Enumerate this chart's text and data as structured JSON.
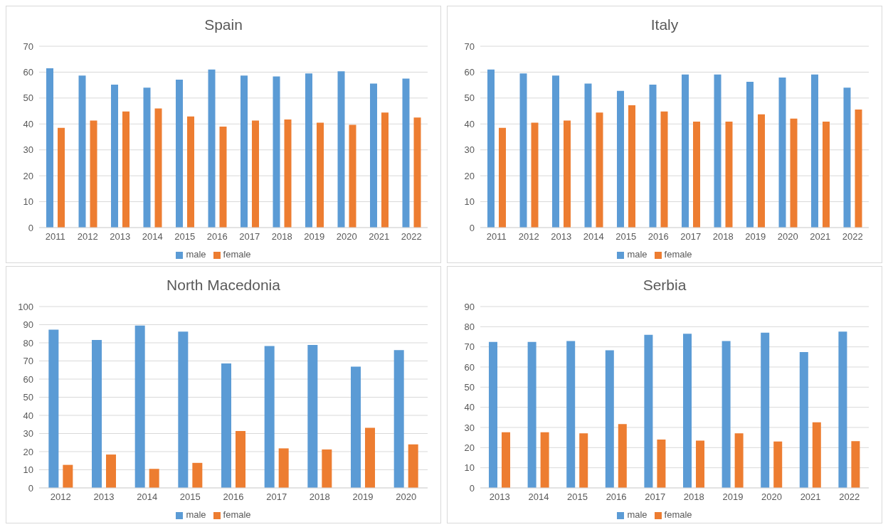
{
  "chart_data": [
    {
      "type": "bar",
      "title": "Spain",
      "categories": [
        "2011",
        "2012",
        "2013",
        "2014",
        "2015",
        "2016",
        "2017",
        "2018",
        "2019",
        "2020",
        "2021",
        "2022"
      ],
      "series": [
        {
          "name": "male",
          "color": "#5b9bd5",
          "values": [
            61.5,
            58.7,
            55.2,
            54,
            57.1,
            61,
            58.7,
            58.3,
            59.5,
            60.3,
            55.6,
            57.5
          ]
        },
        {
          "name": "female",
          "color": "#ed7d31",
          "values": [
            38.5,
            41.3,
            44.8,
            46,
            42.9,
            39,
            41.3,
            41.7,
            40.5,
            39.7,
            44.4,
            42.5
          ]
        }
      ],
      "ylim": [
        0,
        70
      ],
      "yticks": [
        0,
        10,
        20,
        30,
        40,
        50,
        60,
        70
      ],
      "grid": "y",
      "legend": "bottom"
    },
    {
      "type": "bar",
      "title": "Italy",
      "categories": [
        "2011",
        "2012",
        "2013",
        "2014",
        "2015",
        "2016",
        "2017",
        "2018",
        "2019",
        "2020",
        "2021",
        "2022"
      ],
      "series": [
        {
          "name": "male",
          "color": "#5b9bd5",
          "values": [
            61,
            59.5,
            58.7,
            55.6,
            52.8,
            55.2,
            59.1,
            59.1,
            56.3,
            57.9,
            59.1,
            54
          ]
        },
        {
          "name": "female",
          "color": "#ed7d31",
          "values": [
            38.5,
            40.5,
            41.3,
            44.4,
            47.2,
            44.8,
            40.9,
            40.9,
            43.7,
            42.1,
            40.9,
            45.6
          ]
        }
      ],
      "ylim": [
        0,
        70
      ],
      "yticks": [
        0,
        10,
        20,
        30,
        40,
        50,
        60,
        70
      ],
      "grid": "y",
      "legend": "bottom"
    },
    {
      "type": "bar",
      "title": "North Macedonia",
      "categories": [
        "2012",
        "2013",
        "2014",
        "2015",
        "2016",
        "2017",
        "2018",
        "2019",
        "2020"
      ],
      "series": [
        {
          "name": "male",
          "color": "#5b9bd5",
          "values": [
            87.3,
            81.6,
            89.5,
            86.2,
            68.6,
            78.2,
            78.8,
            66.9,
            76
          ]
        },
        {
          "name": "female",
          "color": "#ed7d31",
          "values": [
            12.7,
            18.4,
            10.5,
            13.8,
            31.4,
            21.8,
            21.2,
            33.1,
            24
          ]
        }
      ],
      "ylim": [
        0,
        100
      ],
      "yticks": [
        0,
        10,
        20,
        30,
        40,
        50,
        60,
        70,
        80,
        90,
        100
      ],
      "grid": "y",
      "legend": "bottom"
    },
    {
      "type": "bar",
      "title": "Serbia",
      "categories": [
        "2013",
        "2014",
        "2015",
        "2016",
        "2017",
        "2018",
        "2019",
        "2020",
        "2021",
        "2022"
      ],
      "series": [
        {
          "name": "male",
          "color": "#5b9bd5",
          "values": [
            72.4,
            72.4,
            72.9,
            68.3,
            76,
            76.5,
            72.9,
            77,
            67.4,
            77.6
          ]
        },
        {
          "name": "female",
          "color": "#ed7d31",
          "values": [
            27.6,
            27.6,
            27.1,
            31.7,
            24,
            23.5,
            27.1,
            23,
            32.6,
            23.2
          ]
        }
      ],
      "ylim": [
        0,
        90
      ],
      "yticks": [
        0,
        10,
        20,
        30,
        40,
        50,
        60,
        70,
        80,
        90
      ],
      "grid": "y",
      "legend": "bottom"
    }
  ]
}
